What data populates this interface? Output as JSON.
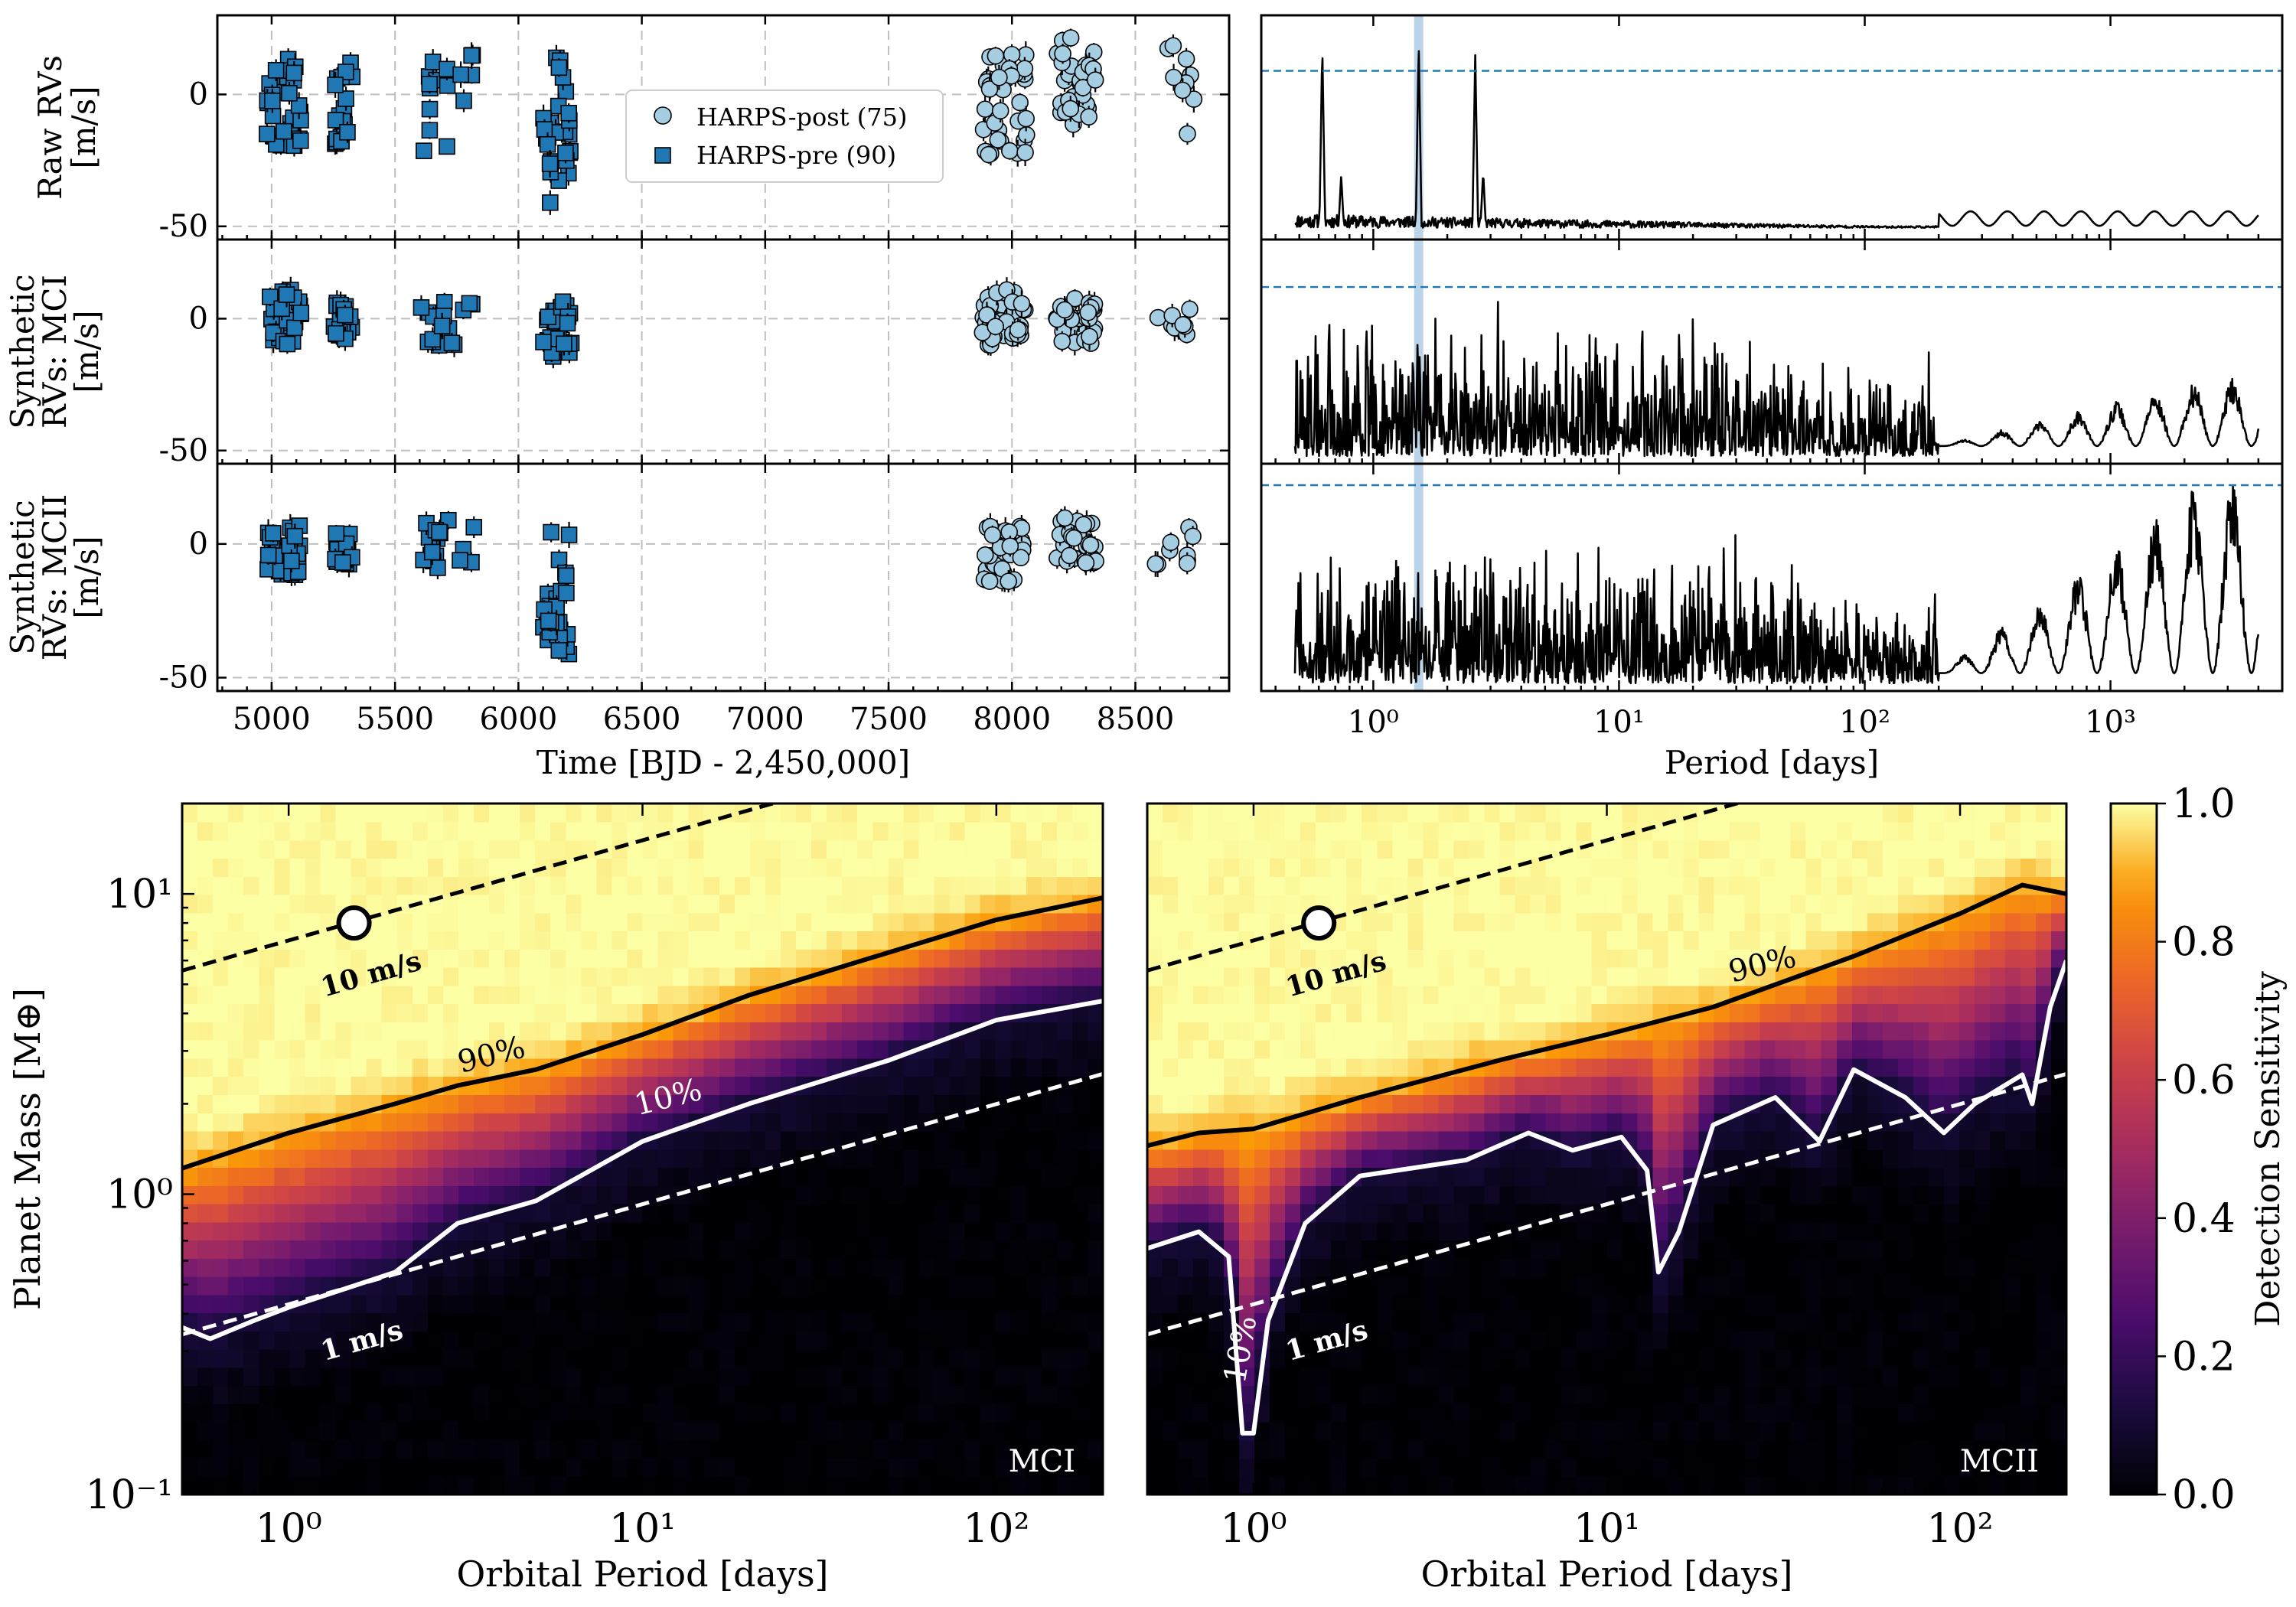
{
  "chart_data": [
    {
      "id": "rv_raw",
      "type": "scatter",
      "ylabel_lines": [
        "Raw RVs",
        "[m/s]"
      ],
      "xlabel": "",
      "xlim": [
        4780,
        8880
      ],
      "ylim": [
        -55,
        30
      ],
      "xticks": [
        5000,
        5500,
        6000,
        6500,
        7000,
        7500,
        8000,
        8500
      ],
      "yticks": [
        -50,
        0
      ],
      "grid": true,
      "legend": {
        "position": "center",
        "entries": [
          "HARPS-post (75)",
          "HARPS-pre (90)"
        ]
      },
      "series": [
        {
          "name": "HARPS-pre (90)",
          "marker": "square",
          "color": "#1f77b4",
          "clusters": [
            {
              "x": [
                4980,
                5120
              ],
              "y": [
                -22,
                14
              ],
              "n": 30
            },
            {
              "x": [
                5250,
                5330
              ],
              "y": [
                -20,
                14
              ],
              "n": 18
            },
            {
              "x": [
                5600,
                5820
              ],
              "y": [
                -24,
                17
              ],
              "n": 16
            },
            {
              "x": [
                6100,
                6220
              ],
              "y": [
                -42,
                17
              ],
              "n": 26
            }
          ]
        },
        {
          "name": "HARPS-post (75)",
          "marker": "circle",
          "color": "#a6cee3",
          "clusters": [
            {
              "x": [
                7880,
                8060
              ],
              "y": [
                -23,
                18
              ],
              "n": 36
            },
            {
              "x": [
                8180,
                8340
              ],
              "y": [
                -12,
                22
              ],
              "n": 30
            },
            {
              "x": [
                8580,
                8740
              ],
              "y": [
                -18,
                19
              ],
              "n": 9
            }
          ]
        }
      ]
    },
    {
      "id": "rv_mci",
      "type": "scatter",
      "ylabel_lines": [
        "Synthetic",
        "RVs: MCI",
        "[m/s]"
      ],
      "xlim": [
        4780,
        8880
      ],
      "ylim": [
        -55,
        30
      ],
      "xticks": [
        5000,
        5500,
        6000,
        6500,
        7000,
        7500,
        8000,
        8500
      ],
      "yticks": [
        -50,
        0
      ],
      "grid": true,
      "series": [
        {
          "name": "HARPS-pre (90)",
          "marker": "square",
          "color": "#1f77b4",
          "clusters": [
            {
              "x": [
                4980,
                5120
              ],
              "y": [
                -10,
                11
              ],
              "n": 30
            },
            {
              "x": [
                5250,
                5330
              ],
              "y": [
                -8,
                7
              ],
              "n": 18
            },
            {
              "x": [
                5600,
                5820
              ],
              "y": [
                -12,
                7
              ],
              "n": 16
            },
            {
              "x": [
                6100,
                6220
              ],
              "y": [
                -16,
                7
              ],
              "n": 26
            }
          ]
        },
        {
          "name": "HARPS-post (75)",
          "marker": "circle",
          "color": "#a6cee3",
          "clusters": [
            {
              "x": [
                7880,
                8060
              ],
              "y": [
                -10,
                11
              ],
              "n": 36
            },
            {
              "x": [
                8180,
                8340
              ],
              "y": [
                -10,
                8
              ],
              "n": 30
            },
            {
              "x": [
                8580,
                8740
              ],
              "y": [
                -7,
                6
              ],
              "n": 9
            }
          ]
        }
      ]
    },
    {
      "id": "rv_mcii",
      "type": "scatter",
      "ylabel_lines": [
        "Synthetic",
        "RVs: MCII",
        "[m/s]"
      ],
      "xlabel": "Time [BJD - 2,450,000]",
      "xlim": [
        4780,
        8880
      ],
      "ylim": [
        -55,
        30
      ],
      "xticks": [
        5000,
        5500,
        6000,
        6500,
        7000,
        7500,
        8000,
        8500
      ],
      "yticks": [
        -50,
        0
      ],
      "grid": true,
      "series": [
        {
          "name": "HARPS-pre (90)",
          "marker": "square",
          "color": "#1f77b4",
          "clusters": [
            {
              "x": [
                4980,
                5120
              ],
              "y": [
                -12,
                7
              ],
              "n": 30
            },
            {
              "x": [
                5250,
                5330
              ],
              "y": [
                -8,
                5
              ],
              "n": 18
            },
            {
              "x": [
                5600,
                5820
              ],
              "y": [
                -10,
                10
              ],
              "n": 16
            },
            {
              "x": [
                6100,
                6220
              ],
              "y": [
                -43,
                5
              ],
              "n": 26
            }
          ]
        },
        {
          "name": "HARPS-post (75)",
          "marker": "circle",
          "color": "#a6cee3",
          "clusters": [
            {
              "x": [
                7880,
                8060
              ],
              "y": [
                -15,
                7
              ],
              "n": 36
            },
            {
              "x": [
                8180,
                8340
              ],
              "y": [
                -8,
                10
              ],
              "n": 30
            },
            {
              "x": [
                8580,
                8740
              ],
              "y": [
                -9,
                7
              ],
              "n": 9
            }
          ]
        }
      ]
    },
    {
      "id": "gls_raw",
      "type": "line",
      "xscale": "log",
      "xlim": [
        0.35,
        5000
      ],
      "xticks": [
        1,
        10,
        100,
        1000
      ],
      "xtick_labels": [
        "10⁰",
        "10¹",
        "10²",
        "10³"
      ],
      "highlight_period": 1.53,
      "fap_level": 0.8,
      "peaks": [
        {
          "period": 0.62,
          "power": 0.93
        },
        {
          "period": 0.74,
          "power": 0.28
        },
        {
          "period": 1.53,
          "power": 0.95
        },
        {
          "period": 2.6,
          "power": 0.88
        },
        {
          "period": 2.8,
          "power": 0.3
        }
      ],
      "long_period_max_power": 0.12
    },
    {
      "id": "gls_mci",
      "type": "line",
      "xscale": "log",
      "xlim": [
        0.35,
        5000
      ],
      "xticks": [
        1,
        10,
        100,
        1000
      ],
      "highlight_period": 1.53,
      "fap_level": 0.84,
      "noise_level": 0.45,
      "long_period_max_power": 0.34
    },
    {
      "id": "gls_mcii",
      "type": "line",
      "xscale": "log",
      "xlabel": "Period [days]",
      "xlim": [
        0.35,
        5000
      ],
      "xticks": [
        1,
        10,
        100,
        1000
      ],
      "xtick_labels": [
        "10⁰",
        "10¹",
        "10²",
        "10³"
      ],
      "highlight_period": 1.53,
      "fap_level": 0.97,
      "noise_level": 0.45,
      "long_period_max_power": 0.97
    },
    {
      "id": "sens_mci",
      "type": "heatmap",
      "title": "MCI",
      "xlabel": "Orbital Period [days]",
      "ylabel": "Planet Mass [M⊕]",
      "xscale": "log",
      "yscale": "log",
      "xlim": [
        0.5,
        200
      ],
      "ylim": [
        0.1,
        20
      ],
      "xticks": [
        1,
        10,
        100
      ],
      "xtick_labels": [
        "10⁰",
        "10¹",
        "10²"
      ],
      "yticks": [
        0.1,
        1,
        10
      ],
      "ytick_labels": [
        "10⁻¹",
        "10⁰",
        "10¹"
      ],
      "contour_90": {
        "label": "90%",
        "points": [
          [
            0.5,
            1.22
          ],
          [
            1,
            1.6
          ],
          [
            2,
            2.0
          ],
          [
            3,
            2.3
          ],
          [
            5,
            2.6
          ],
          [
            10,
            3.4
          ],
          [
            20,
            4.6
          ],
          [
            50,
            6.4
          ],
          [
            100,
            8.2
          ],
          [
            200,
            9.7
          ]
        ]
      },
      "contour_10": {
        "label": "10%",
        "points": [
          [
            0.5,
            0.36
          ],
          [
            0.6,
            0.33
          ],
          [
            0.8,
            0.38
          ],
          [
            1,
            0.42
          ],
          [
            2,
            0.55
          ],
          [
            3,
            0.8
          ],
          [
            5,
            0.95
          ],
          [
            10,
            1.5
          ],
          [
            20,
            2.0
          ],
          [
            50,
            2.8
          ],
          [
            100,
            3.8
          ],
          [
            200,
            4.4
          ]
        ]
      },
      "mass_lines": [
        {
          "label": "10 m/s",
          "k": 7.0,
          "color": "#000000"
        },
        {
          "label": "1 m/s",
          "k": 0.43,
          "color": "#ffffff"
        }
      ],
      "planet": {
        "period": 1.53,
        "mass": 8.0
      }
    },
    {
      "id": "sens_mcii",
      "type": "heatmap",
      "title": "MCII",
      "xlabel": "Orbital Period [days]",
      "xscale": "log",
      "yscale": "log",
      "xlim": [
        0.5,
        200
      ],
      "ylim": [
        0.1,
        20
      ],
      "xticks": [
        1,
        10,
        100
      ],
      "xtick_labels": [
        "10⁰",
        "10¹",
        "10²"
      ],
      "contour_90": {
        "label": "90%",
        "points": [
          [
            0.5,
            1.45
          ],
          [
            0.7,
            1.6
          ],
          [
            1,
            1.65
          ],
          [
            2,
            2.1
          ],
          [
            5,
            2.8
          ],
          [
            10,
            3.4
          ],
          [
            20,
            4.2
          ],
          [
            50,
            6.2
          ],
          [
            100,
            8.6
          ],
          [
            150,
            10.7
          ],
          [
            200,
            10.0
          ]
        ]
      },
      "contour_10": {
        "label": "10%",
        "points": [
          [
            0.5,
            0.66
          ],
          [
            0.7,
            0.75
          ],
          [
            0.85,
            0.62
          ],
          [
            0.93,
            0.16
          ],
          [
            1.0,
            0.16
          ],
          [
            1.1,
            0.38
          ],
          [
            1.4,
            0.8
          ],
          [
            2,
            1.15
          ],
          [
            4,
            1.3
          ],
          [
            6,
            1.6
          ],
          [
            8,
            1.4
          ],
          [
            11,
            1.55
          ],
          [
            13,
            1.2
          ],
          [
            14,
            0.55
          ],
          [
            16,
            0.75
          ],
          [
            20,
            1.7
          ],
          [
            30,
            2.1
          ],
          [
            40,
            1.5
          ],
          [
            50,
            2.6
          ],
          [
            70,
            2.1
          ],
          [
            90,
            1.6
          ],
          [
            110,
            2.0
          ],
          [
            150,
            2.5
          ],
          [
            160,
            2.0
          ],
          [
            180,
            4.2
          ],
          [
            200,
            6.0
          ]
        ]
      },
      "mass_lines": [
        {
          "label": "10 m/s",
          "k": 7.0,
          "color": "#000000"
        },
        {
          "label": "1 m/s",
          "k": 0.43,
          "color": "#ffffff"
        }
      ],
      "planet": {
        "period": 1.53,
        "mass": 8.0
      }
    },
    {
      "id": "colorbar",
      "type": "colorbar",
      "label": "Detection Sensitivity",
      "range": [
        0,
        1
      ],
      "ticks": [
        0.0,
        0.2,
        0.4,
        0.6,
        0.8,
        1.0
      ],
      "tick_labels": [
        "0.0",
        "0.2",
        "0.4",
        "0.6",
        "0.8",
        "1.0"
      ],
      "colormap": "inferno"
    }
  ]
}
